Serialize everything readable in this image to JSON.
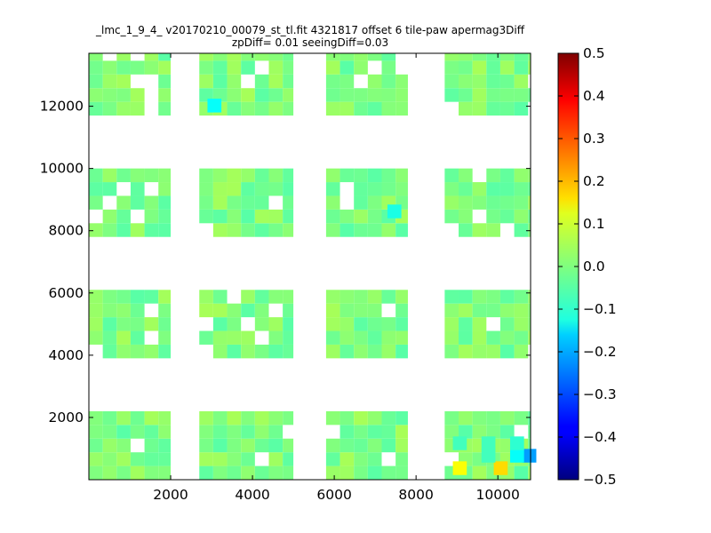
{
  "chart_data": {
    "type": "heatmap",
    "title": "_lmc_1_9_4_ v20170210_00079_st_tl.fit 4321817 offset 6 tile-paw apermag3Diff",
    "subtitle": "zpDiff= 0.01 seeingDiff=0.03",
    "xlabel": "",
    "ylabel": "",
    "xlim": [
      0,
      10800
    ],
    "ylim": [
      0,
      13700
    ],
    "xticks": [
      2000,
      4000,
      6000,
      8000,
      10000
    ],
    "yticks": [
      2000,
      4000,
      6000,
      8000,
      10000,
      12000
    ],
    "colorbar": {
      "colormap": "jet",
      "range": [
        -0.5,
        0.5
      ],
      "ticks": [
        "0.5",
        "0.4",
        "0.3",
        "0.2",
        "0.1",
        "0.0",
        "−0.1",
        "−0.2",
        "−0.3",
        "−0.4",
        "−0.5"
      ]
    },
    "cell_size": [
      340,
      440
    ],
    "chips": [
      {
        "x": [
          0,
          2000
        ],
        "y": [
          0,
          2200
        ]
      },
      {
        "x": [
          2700,
          5000
        ],
        "y": [
          0,
          2200
        ]
      },
      {
        "x": [
          5800,
          7800
        ],
        "y": [
          0,
          2200
        ]
      },
      {
        "x": [
          8700,
          10800
        ],
        "y": [
          0,
          2200
        ]
      },
      {
        "x": [
          0,
          2000
        ],
        "y": [
          3900,
          6100
        ]
      },
      {
        "x": [
          2700,
          5000
        ],
        "y": [
          3900,
          6100
        ]
      },
      {
        "x": [
          5800,
          7800
        ],
        "y": [
          3900,
          6100
        ]
      },
      {
        "x": [
          8700,
          10800
        ],
        "y": [
          3900,
          6100
        ]
      },
      {
        "x": [
          0,
          2000
        ],
        "y": [
          7800,
          10000
        ]
      },
      {
        "x": [
          2700,
          5000
        ],
        "y": [
          7800,
          10000
        ]
      },
      {
        "x": [
          5800,
          7800
        ],
        "y": [
          7800,
          10000
        ]
      },
      {
        "x": [
          8700,
          10800
        ],
        "y": [
          7800,
          10000
        ]
      },
      {
        "x": [
          0,
          2000
        ],
        "y": [
          11700,
          13700
        ]
      },
      {
        "x": [
          2700,
          5000
        ],
        "y": [
          11700,
          13700
        ]
      },
      {
        "x": [
          5800,
          7800
        ],
        "y": [
          11700,
          13700
        ]
      },
      {
        "x": [
          8700,
          10800
        ],
        "y": [
          11700,
          13700
        ]
      }
    ],
    "highlights": [
      {
        "x": 2900,
        "y": 11800,
        "value": -0.12
      },
      {
        "x": 7300,
        "y": 8400,
        "value": -0.1
      },
      {
        "x": 8900,
        "y": 150,
        "value": 0.12
      },
      {
        "x": 9900,
        "y": 150,
        "value": 0.16
      },
      {
        "x": 10600,
        "y": 550,
        "value": -0.22
      },
      {
        "x": 10300,
        "y": 550,
        "value": -0.12
      },
      {
        "x": 9600,
        "y": 550,
        "value": -0.06
      },
      {
        "x": 8900,
        "y": 950,
        "value": -0.06
      },
      {
        "x": 9600,
        "y": 950,
        "value": -0.06
      },
      {
        "x": 10300,
        "y": 950,
        "value": -0.08
      }
    ]
  }
}
